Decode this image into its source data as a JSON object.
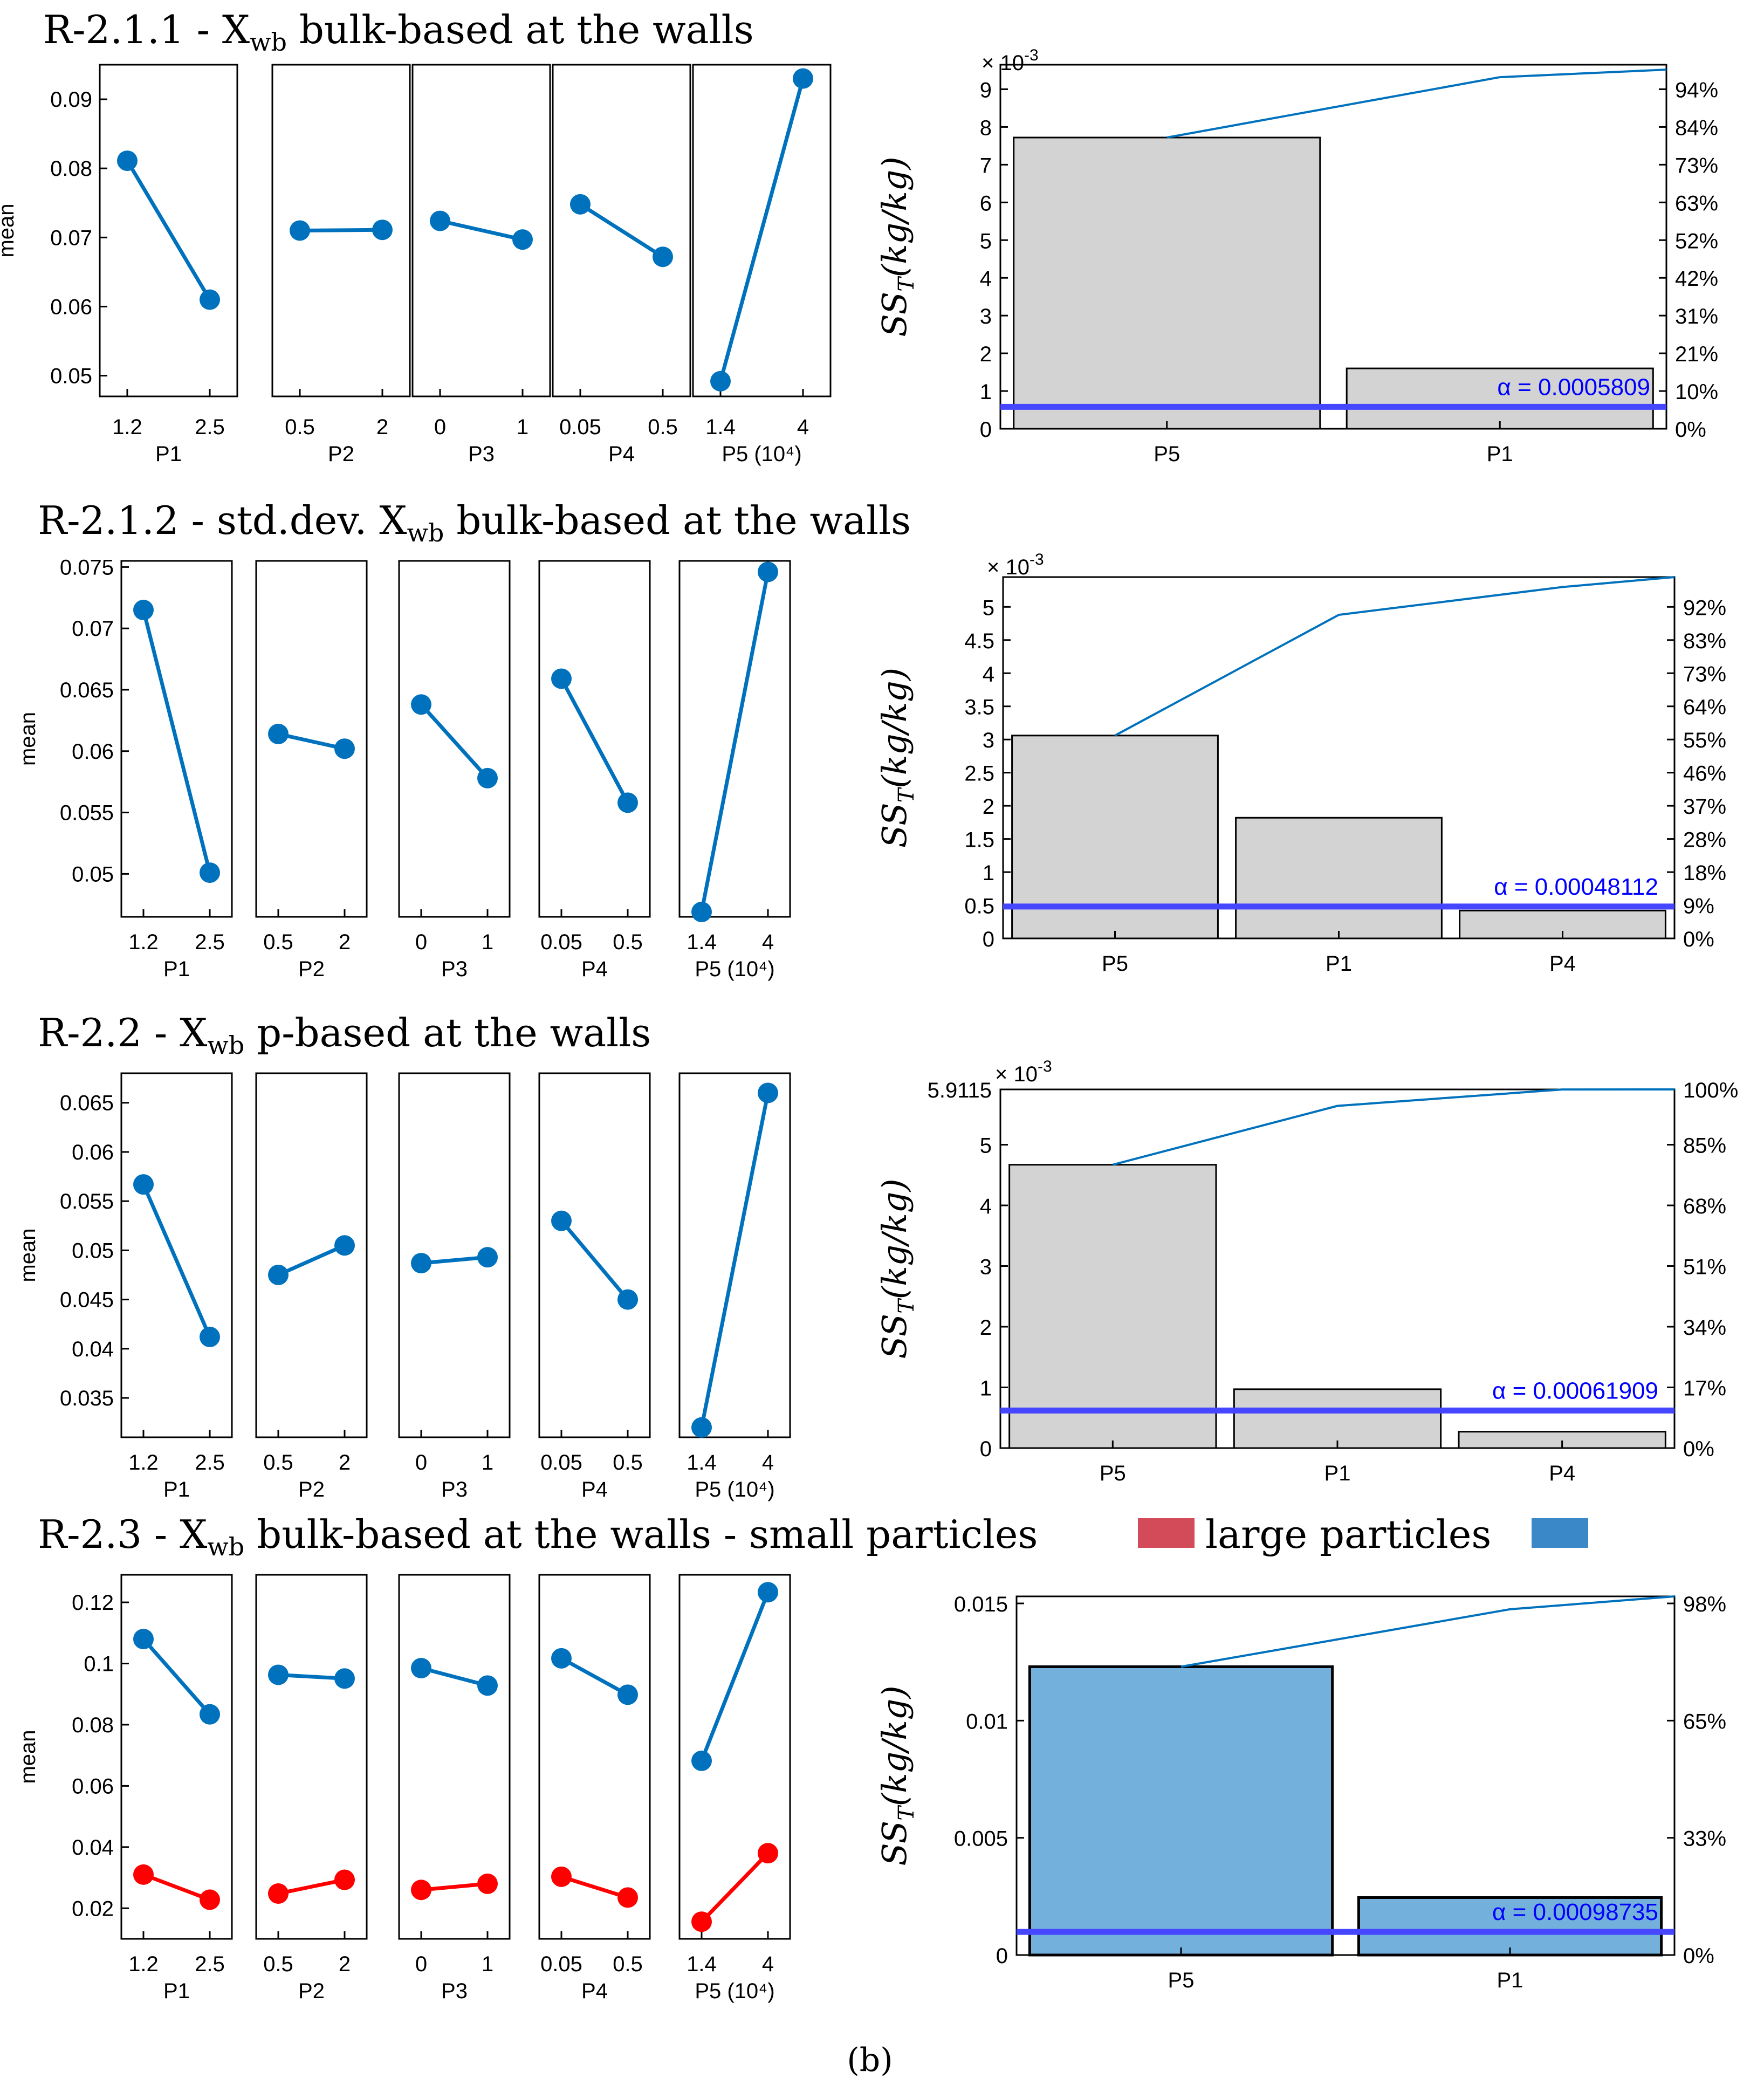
{
  "figure_label": "b",
  "colors": {
    "mean_line": "#0072BD",
    "small_particles": "#ff0000",
    "large_particles_bar": "#73b0db",
    "legend_small": "#d34a58",
    "legend_large": "#3b88c8",
    "bar_gray": "#d3d3d3",
    "alpha_line": "#4646ff",
    "cumulative_line": "#0072BD"
  },
  "legend": {
    "small": "small particles",
    "large": "large particles"
  },
  "chart_data": [
    {
      "id": "R-2.1.1",
      "type": "line",
      "title": {
        "prefix": "R-2.1.1 - ",
        "x": "X",
        "sub": "wb",
        "suffix": " bulk-based at the walls"
      },
      "ylabel": "mean",
      "ylim": [
        0.047,
        0.095
      ],
      "yticks": [
        "0.05",
        "0.06",
        "0.07",
        "0.08",
        "0.09"
      ],
      "ytick_values": [
        0.05,
        0.06,
        0.07,
        0.08,
        0.09
      ],
      "panels": [
        {
          "xlabel": "P1",
          "levels": [
            "1.2",
            "2.5"
          ],
          "series": [
            {
              "color": "blue",
              "values": [
                0.0811,
                0.061
              ]
            }
          ]
        },
        {
          "xlabel": "P2",
          "levels": [
            "0.5",
            "2"
          ],
          "series": [
            {
              "color": "blue",
              "values": [
                0.071,
                0.0711
              ]
            }
          ]
        },
        {
          "xlabel": "P3",
          "levels": [
            "0",
            "1"
          ],
          "series": [
            {
              "color": "blue",
              "values": [
                0.0724,
                0.0697
              ]
            }
          ]
        },
        {
          "xlabel": "P4",
          "levels": [
            "0.05",
            "0.5"
          ],
          "series": [
            {
              "color": "blue",
              "values": [
                0.0748,
                0.0672
              ]
            }
          ]
        },
        {
          "xlabel": "P5 (10⁴)",
          "levels": [
            "1.4",
            "4"
          ],
          "series": [
            {
              "color": "blue",
              "values": [
                0.0492,
                0.093
              ]
            }
          ]
        }
      ]
    },
    {
      "id": "R-2.1.2",
      "type": "line",
      "title": {
        "prefix": "R-2.1.2 - std.dev. ",
        "x": "X",
        "sub": "wb",
        "suffix": " bulk-based at the walls"
      },
      "ylabel": "mean",
      "ylim": [
        0.0465,
        0.0755
      ],
      "yticks": [
        "0.05",
        "0.055",
        "0.06",
        "0.065",
        "0.07",
        "0.075"
      ],
      "ytick_values": [
        0.05,
        0.055,
        0.06,
        0.065,
        0.07,
        0.075
      ],
      "panels": [
        {
          "xlabel": "P1",
          "levels": [
            "1.2",
            "2.5"
          ],
          "series": [
            {
              "color": "blue",
              "values": [
                0.0715,
                0.0501
              ]
            }
          ]
        },
        {
          "xlabel": "P2",
          "levels": [
            "0.5",
            "2"
          ],
          "series": [
            {
              "color": "blue",
              "values": [
                0.0614,
                0.0602
              ]
            }
          ]
        },
        {
          "xlabel": "P3",
          "levels": [
            "0",
            "1"
          ],
          "series": [
            {
              "color": "blue",
              "values": [
                0.0638,
                0.0578
              ]
            }
          ]
        },
        {
          "xlabel": "P4",
          "levels": [
            "0.05",
            "0.5"
          ],
          "series": [
            {
              "color": "blue",
              "values": [
                0.0659,
                0.0558
              ]
            }
          ]
        },
        {
          "xlabel": "P5 (10⁴)",
          "levels": [
            "1.4",
            "4"
          ],
          "series": [
            {
              "color": "blue",
              "values": [
                0.0469,
                0.0746
              ]
            }
          ]
        }
      ]
    },
    {
      "id": "R-2.2",
      "type": "line",
      "title": {
        "prefix": "R-2.2 - ",
        "x": "X",
        "sub": "wb",
        "suffix": " p-based at the walls"
      },
      "ylabel": "mean",
      "ylim": [
        0.031,
        0.068
      ],
      "yticks": [
        "0.035",
        "0.04",
        "0.045",
        "0.05",
        "0.055",
        "0.06",
        "0.065"
      ],
      "ytick_values": [
        0.035,
        0.04,
        0.045,
        0.05,
        0.055,
        0.06,
        0.065
      ],
      "panels": [
        {
          "xlabel": "P1",
          "levels": [
            "1.2",
            "2.5"
          ],
          "series": [
            {
              "color": "blue",
              "values": [
                0.0567,
                0.0412
              ]
            }
          ]
        },
        {
          "xlabel": "P2",
          "levels": [
            "0.5",
            "2"
          ],
          "series": [
            {
              "color": "blue",
              "values": [
                0.0475,
                0.0505
              ]
            }
          ]
        },
        {
          "xlabel": "P3",
          "levels": [
            "0",
            "1"
          ],
          "series": [
            {
              "color": "blue",
              "values": [
                0.0487,
                0.0493
              ]
            }
          ]
        },
        {
          "xlabel": "P4",
          "levels": [
            "0.05",
            "0.5"
          ],
          "series": [
            {
              "color": "blue",
              "values": [
                0.053,
                0.045
              ]
            }
          ]
        },
        {
          "xlabel": "P5 (10⁴)",
          "levels": [
            "1.4",
            "4"
          ],
          "series": [
            {
              "color": "blue",
              "values": [
                0.032,
                0.066
              ]
            }
          ]
        }
      ]
    },
    {
      "id": "R-2.3",
      "type": "line",
      "title": {
        "prefix": "R-2.3 - ",
        "x": "X",
        "sub": "wb",
        "suffix": " bulk-based at the walls - small particles"
      },
      "ylabel": "mean",
      "ylim": [
        0.01,
        0.129
      ],
      "yticks": [
        "0.02",
        "0.04",
        "0.06",
        "0.08",
        "0.1",
        "0.12"
      ],
      "ytick_values": [
        0.02,
        0.04,
        0.06,
        0.08,
        0.1,
        0.12
      ],
      "panels": [
        {
          "xlabel": "P1",
          "levels": [
            "1.2",
            "2.5"
          ],
          "series": [
            {
              "color": "blue",
              "values": [
                0.108,
                0.0834
              ]
            },
            {
              "color": "red",
              "values": [
                0.031,
                0.0228
              ]
            }
          ]
        },
        {
          "xlabel": "P2",
          "levels": [
            "0.5",
            "2"
          ],
          "series": [
            {
              "color": "blue",
              "values": [
                0.0963,
                0.0951
              ]
            },
            {
              "color": "red",
              "values": [
                0.0248,
                0.0293
              ]
            }
          ]
        },
        {
          "xlabel": "P3",
          "levels": [
            "0",
            "1"
          ],
          "series": [
            {
              "color": "blue",
              "values": [
                0.0985,
                0.0928
              ]
            },
            {
              "color": "red",
              "values": [
                0.026,
                0.028
              ]
            }
          ]
        },
        {
          "xlabel": "P4",
          "levels": [
            "0.05",
            "0.5"
          ],
          "series": [
            {
              "color": "blue",
              "values": [
                0.1017,
                0.0898
              ]
            },
            {
              "color": "red",
              "values": [
                0.0303,
                0.0235
              ]
            }
          ]
        },
        {
          "xlabel": "P5 (10⁴)",
          "levels": [
            "1.4",
            "4"
          ],
          "series": [
            {
              "color": "blue",
              "values": [
                0.0682,
                0.1233
              ]
            },
            {
              "color": "red",
              "values": [
                0.0156,
                0.038
              ]
            }
          ]
        }
      ]
    },
    {
      "id": "R-2.1.1-pareto",
      "type": "bar",
      "ylabel": "SS",
      "ylabel_sub": "T",
      "ylabel_tail": "(kg/kg)",
      "multiplier": "× 10",
      "multiplier_exp": "-3",
      "categories": [
        "P5",
        "P1"
      ],
      "values": [
        7.72,
        1.6
      ],
      "ylim": [
        0,
        9.65
      ],
      "yticks": [
        "0",
        "1",
        "2",
        "3",
        "4",
        "5",
        "6",
        "7",
        "8",
        "9"
      ],
      "ytick_values": [
        0,
        1,
        2,
        3,
        4,
        5,
        6,
        7,
        8,
        9
      ],
      "y2ticks": [
        "0%",
        "10%",
        "21%",
        "31%",
        "42%",
        "52%",
        "63%",
        "73%",
        "84%",
        "94%"
      ],
      "cumulative": [
        7.72,
        9.32,
        9.52
      ],
      "alpha_value": 0.5809,
      "alpha_label": "α = 0.0005809",
      "bar_fill": "gray"
    },
    {
      "id": "R-2.1.2-pareto",
      "type": "bar",
      "ylabel": "SS",
      "ylabel_sub": "T",
      "ylabel_tail": "(kg/kg)",
      "multiplier": "× 10",
      "multiplier_exp": "-3",
      "categories": [
        "P5",
        "P1",
        "P4"
      ],
      "values": [
        3.06,
        1.82,
        0.42
      ],
      "ylim": [
        0,
        5.45
      ],
      "yticks": [
        "0",
        "0.5",
        "1",
        "1.5",
        "2",
        "2.5",
        "3",
        "3.5",
        "4",
        "4.5",
        "5"
      ],
      "ytick_values": [
        0,
        0.5,
        1,
        1.5,
        2,
        2.5,
        3,
        3.5,
        4,
        4.5,
        5
      ],
      "y2ticks": [
        "0%",
        "9%",
        "18%",
        "28%",
        "37%",
        "46%",
        "55%",
        "64%",
        "73%",
        "83%",
        "92%"
      ],
      "cumulative": [
        3.06,
        4.88,
        5.3,
        5.45
      ],
      "alpha_value": 0.48112,
      "alpha_label": "α = 0.00048112",
      "bar_fill": "gray"
    },
    {
      "id": "R-2.2-pareto",
      "type": "bar",
      "ylabel": "SS",
      "ylabel_sub": "T",
      "ylabel_tail": "(kg/kg)",
      "multiplier": "× 10",
      "multiplier_exp": "-3",
      "categories": [
        "P5",
        "P1",
        "P4"
      ],
      "values": [
        4.67,
        0.97,
        0.27
      ],
      "ylim": [
        0,
        5.9115
      ],
      "yticks": [
        "0",
        "1",
        "2",
        "3",
        "4",
        "5",
        "5.9115"
      ],
      "ytick_values": [
        0,
        1,
        2,
        3,
        4,
        5,
        5.9115
      ],
      "y2ticks": [
        "0%",
        "17%",
        "34%",
        "51%",
        "68%",
        "85%",
        "100%"
      ],
      "y2tick_values": [
        0,
        1,
        2,
        3,
        4,
        5,
        5.9115
      ],
      "cumulative": [
        4.67,
        5.64,
        5.91,
        5.9115
      ],
      "alpha_value": 0.61909,
      "alpha_label": "α = 0.00061909",
      "bar_fill": "gray"
    },
    {
      "id": "R-2.3-pareto",
      "type": "bar",
      "ylabel": "SS",
      "ylabel_sub": "T",
      "ylabel_tail": "(kg/kg)",
      "categories": [
        "P5",
        "P1"
      ],
      "values": [
        0.0123,
        0.00245
      ],
      "ylim": [
        0,
        0.0153
      ],
      "yticks": [
        "0",
        "0.005",
        "0.01",
        "0.015"
      ],
      "ytick_values": [
        0,
        0.005,
        0.01,
        0.015
      ],
      "y2ticks": [
        "0%",
        "33%",
        "65%",
        "98%"
      ],
      "y2tick_values": [
        0,
        0.005,
        0.01,
        0.015
      ],
      "cumulative": [
        0.0123,
        0.01475,
        0.0153
      ],
      "alpha_value": 0.00098735,
      "alpha_label": "α = 0.00098735",
      "bar_fill": "blue"
    }
  ]
}
